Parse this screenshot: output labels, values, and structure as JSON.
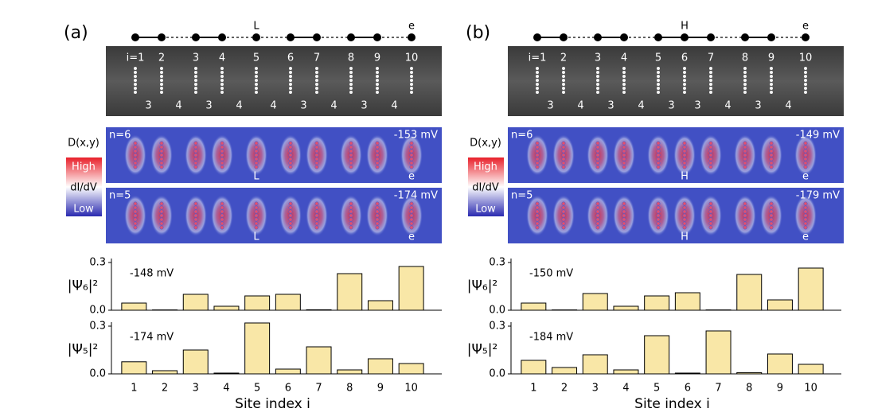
{
  "panels": [
    {
      "label": "(a)",
      "site_labels": [
        null,
        null,
        null,
        null,
        "L",
        null,
        null,
        null,
        null,
        "e"
      ],
      "sites": [
        "i=1",
        "2",
        "3",
        "4",
        "5",
        "6",
        "7",
        "8",
        "9",
        "10"
      ],
      "spacings": [
        3,
        4,
        3,
        4,
        4,
        3,
        4,
        3,
        4
      ],
      "maps": [
        {
          "n": "n=6",
          "energy": "-153 mV"
        },
        {
          "n": "n=5",
          "energy": "-174 mV"
        }
      ],
      "colorbar": {
        "title": "D(x,y)",
        "high": "High",
        "quantity": "dI/dV",
        "low": "Low"
      }
    },
    {
      "label": "(b)",
      "site_labels": [
        null,
        null,
        null,
        null,
        null,
        "H",
        null,
        null,
        null,
        "e"
      ],
      "sites": [
        "i=1",
        "2",
        "3",
        "4",
        "5",
        "6",
        "7",
        "8",
        "9",
        "10"
      ],
      "spacings": [
        3,
        4,
        3,
        4,
        3,
        3,
        4,
        3,
        4
      ],
      "maps": [
        {
          "n": "n=6",
          "energy": "-149 mV"
        },
        {
          "n": "n=5",
          "energy": "-179 mV"
        }
      ],
      "colorbar": {
        "title": "D(x,y)",
        "high": "High",
        "quantity": "dI/dV",
        "low": "Low"
      }
    }
  ],
  "chart_data": [
    {
      "type": "bar",
      "ylabel": "|Ψ₆|²",
      "annotation": "-148 mV",
      "categories": [
        null,
        null,
        null,
        null,
        null,
        null,
        null,
        null,
        null,
        null
      ],
      "values": [
        0.045,
        0.002,
        0.1,
        0.025,
        0.09,
        0.1,
        0.003,
        0.23,
        0.06,
        0.275
      ],
      "color": "#f9e7a7",
      "ylim": [
        0,
        0.325
      ],
      "yticks": [
        {
          "value": 0,
          "label": "0.0"
        },
        0.3
      ]
    },
    {
      "type": "bar",
      "ylabel": "|Ψ₅|²",
      "annotation": "-174 mV",
      "xlabel": "Site index i",
      "categories": [
        "1",
        "2",
        "3",
        "4",
        "5",
        "6",
        "7",
        "8",
        "9",
        "10"
      ],
      "values": [
        0.076,
        0.02,
        0.15,
        0.005,
        0.32,
        0.03,
        0.17,
        0.025,
        0.095,
        0.065
      ],
      "color": "#f9e7a7",
      "ylim": [
        0,
        0.325
      ],
      "yticks": [
        {
          "value": 0,
          "label": "0.0"
        },
        0.3
      ]
    },
    {
      "type": "bar",
      "ylabel": "|Ψ₆|²",
      "annotation": "-150 mV",
      "categories": [
        null,
        null,
        null,
        null,
        null,
        null,
        null,
        null,
        null,
        null
      ],
      "values": [
        0.045,
        0.002,
        0.105,
        0.025,
        0.09,
        0.11,
        0.002,
        0.225,
        0.065,
        0.265
      ],
      "color": "#f9e7a7",
      "ylim": [
        0,
        0.325
      ],
      "yticks": [
        {
          "value": 0,
          "label": "0.0"
        },
        0.3
      ]
    },
    {
      "type": "bar",
      "ylabel": "|Ψ₅|²",
      "annotation": "-184 mV",
      "xlabel": "Site index i",
      "categories": [
        "1",
        "2",
        "3",
        "4",
        "5",
        "6",
        "7",
        "8",
        "9",
        "10"
      ],
      "values": [
        0.085,
        0.04,
        0.12,
        0.025,
        0.24,
        0.005,
        0.27,
        0.008,
        0.125,
        0.06
      ],
      "color": "#f9e7a7",
      "ylim": [
        0,
        0.325
      ],
      "yticks": [
        {
          "value": 0,
          "label": "0.0"
        },
        0.3
      ]
    }
  ]
}
